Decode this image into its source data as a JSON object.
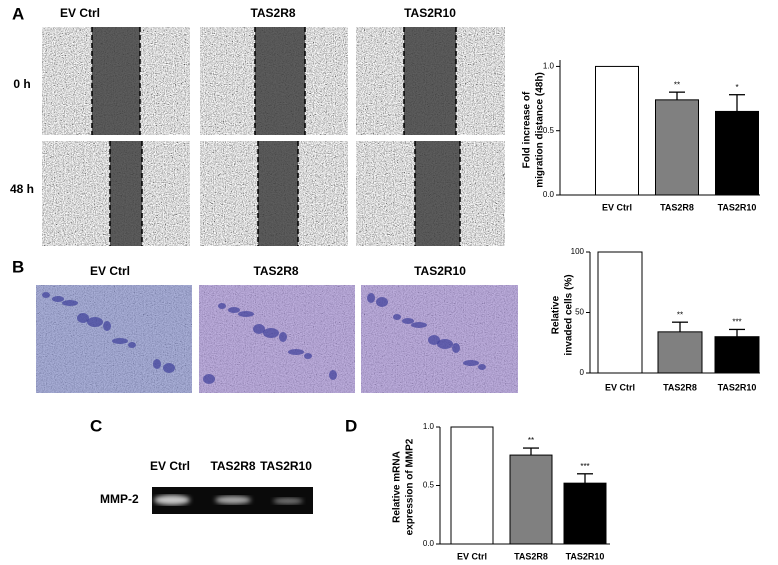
{
  "panel_labels": [
    "A",
    "B",
    "C",
    "D"
  ],
  "migration_images": {
    "columns": [
      "EV Ctrl",
      "TAS2R8",
      "TAS2R10"
    ],
    "rows": [
      "0 h",
      "48 h"
    ]
  },
  "invasion_images": {
    "columns": [
      "EV Ctrl",
      "TAS2R8",
      "TAS2R10"
    ]
  },
  "western_blot": {
    "lanes": [
      "EV Ctrl",
      "TAS2R8",
      "TAS2R10"
    ],
    "band_label": "MMP-2"
  },
  "chart_data": [
    {
      "type": "bar",
      "y_label": [
        "Fold increase of",
        "migration distance (48h)"
      ],
      "categories": [
        "EV Ctrl",
        "TAS2R8",
        "TAS2R10"
      ],
      "values": [
        1.0,
        0.74,
        0.65
      ],
      "errors": [
        null,
        0.06,
        0.13
      ],
      "annotations": [
        null,
        "**",
        "*"
      ],
      "colors": [
        "#ffffff",
        "#808080",
        "#000000"
      ],
      "ylim": [
        0,
        1.05
      ],
      "yticks": [
        {
          "value": 0,
          "label": "0.0"
        },
        {
          "value": 0.5,
          "label": "0.5"
        },
        {
          "value": 1,
          "label": "1.0"
        }
      ]
    },
    {
      "type": "bar",
      "y_label": [
        "Relative",
        "invaded cells (%)"
      ],
      "categories": [
        "EV Ctrl",
        "TAS2R8",
        "TAS2R10"
      ],
      "values": [
        100,
        34,
        30
      ],
      "errors": [
        null,
        8,
        6
      ],
      "annotations": [
        null,
        "**",
        "***"
      ],
      "colors": [
        "#ffffff",
        "#808080",
        "#000000"
      ],
      "ylim": [
        0,
        100
      ],
      "yticks": [
        0,
        50,
        100
      ]
    },
    {
      "type": "bar",
      "y_label": [
        "Relative mRNA",
        "expression of MMP2"
      ],
      "categories": [
        "EV Ctrl",
        "TAS2R8",
        "TAS2R10"
      ],
      "values": [
        1.0,
        0.76,
        0.52
      ],
      "errors": [
        null,
        0.06,
        0.08
      ],
      "annotations": [
        null,
        "**",
        "***"
      ],
      "colors": [
        "#ffffff",
        "#808080",
        "#000000"
      ],
      "ylim": [
        0,
        1.0
      ],
      "yticks": [
        {
          "value": 0,
          "label": "0.0"
        },
        {
          "value": 0.5,
          "label": "0.5"
        },
        {
          "value": 1,
          "label": "1.0"
        }
      ]
    }
  ]
}
